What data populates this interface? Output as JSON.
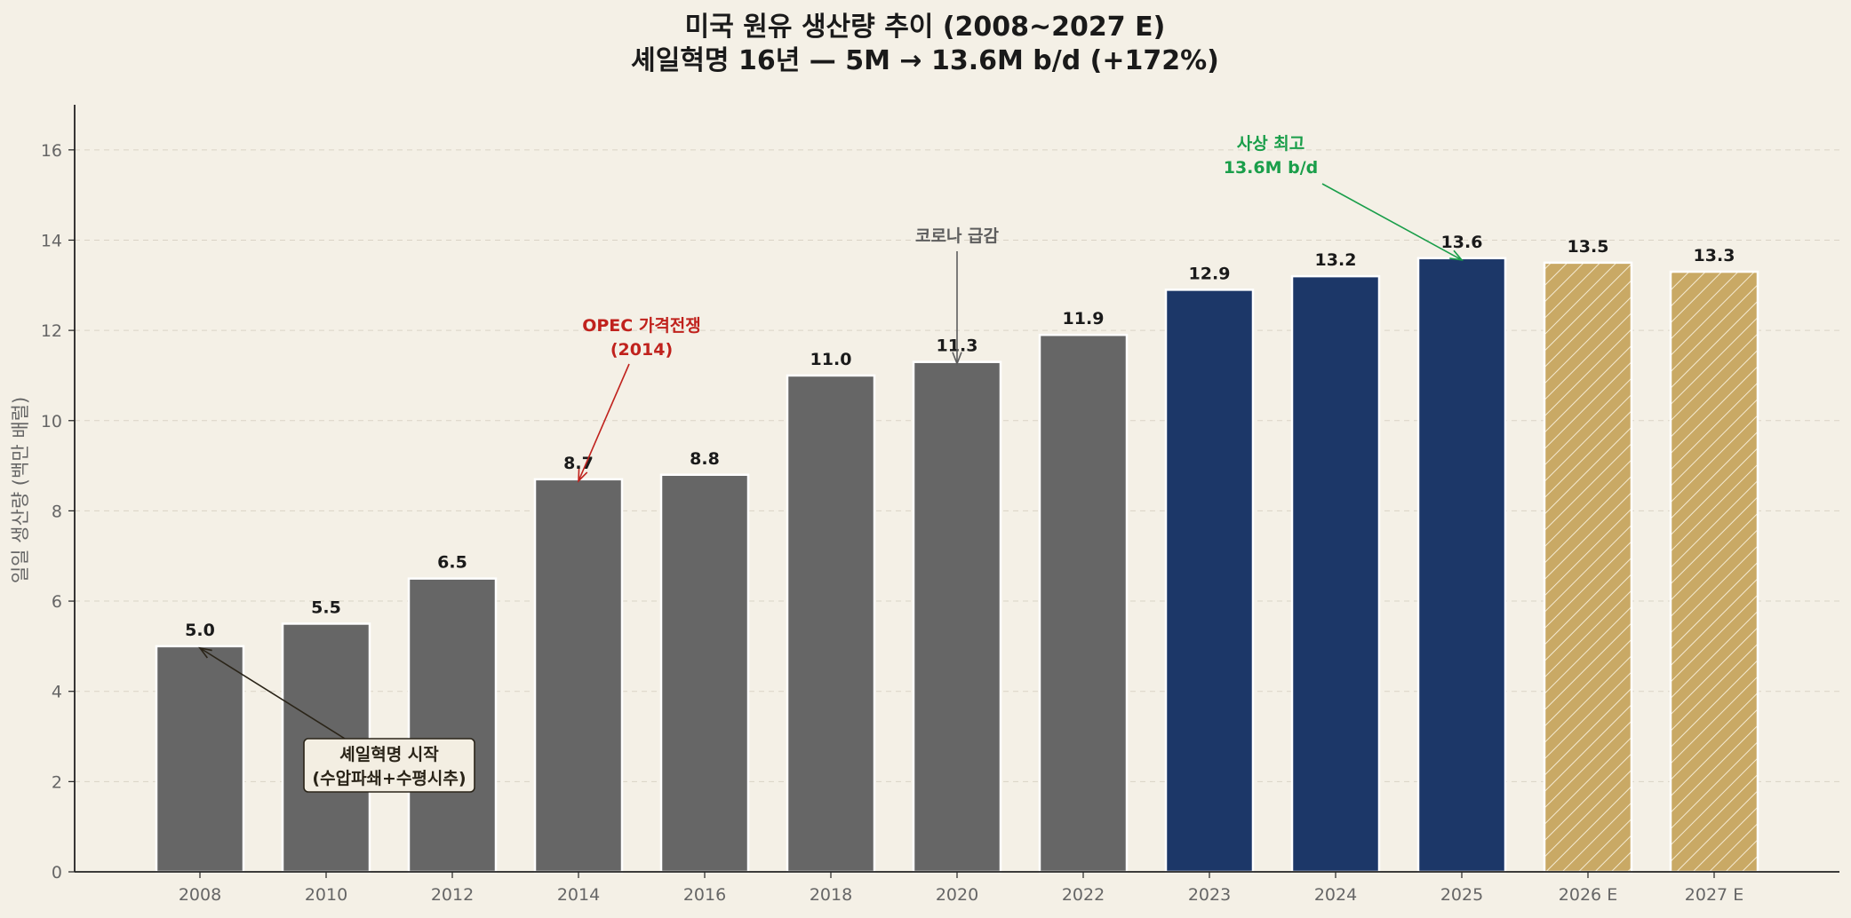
{
  "chart_data": {
    "type": "bar",
    "title": "미국 원유 생산량 추이 (2008~2027 E)",
    "subtitle": "셰일혁명 16년 — 5M → 13.6M b/d (+172%)",
    "xlabel": "",
    "ylabel": "일일 생산량 (백만 배럴)",
    "ylim": [
      0,
      17
    ],
    "yticks": [
      0,
      2,
      4,
      6,
      8,
      10,
      12,
      14,
      16
    ],
    "grid": true,
    "categories": [
      "2008",
      "2010",
      "2012",
      "2014",
      "2016",
      "2018",
      "2020",
      "2022",
      "2023",
      "2024",
      "2025",
      "2026 E",
      "2027 E"
    ],
    "values": [
      5.0,
      5.5,
      6.5,
      8.7,
      8.8,
      11.0,
      11.3,
      11.9,
      12.9,
      13.2,
      13.6,
      13.5,
      13.3
    ],
    "value_labels": [
      "5.0",
      "5.5",
      "6.5",
      "8.7",
      "8.8",
      "11.0",
      "11.3",
      "11.9",
      "12.9",
      "13.2",
      "13.6",
      "13.5",
      "13.3"
    ],
    "bar_styles": [
      "historical",
      "historical",
      "historical",
      "historical",
      "historical",
      "historical",
      "historical",
      "historical",
      "recent",
      "recent",
      "recent",
      "estimate",
      "estimate"
    ],
    "colors": {
      "historical": "#666666",
      "recent": "#1c3768",
      "estimate": "#c9a965",
      "background": "#f4f0e6",
      "axis": "#222222"
    },
    "annotations": [
      {
        "lines": [
          "셰일혁명 시작",
          "(수압파쇄+수평시추)"
        ],
        "target_category": "2008",
        "target_value": 5.0,
        "color": "#2a2418",
        "boxed": true
      },
      {
        "lines": [
          "OPEC 가격전쟁",
          "(2014)"
        ],
        "target_category": "2014",
        "target_value": 8.7,
        "color": "#c0221d",
        "boxed": false
      },
      {
        "lines": [
          "코로나 급감"
        ],
        "target_category": "2020",
        "target_value": 11.3,
        "color": "#5e5e5e",
        "boxed": false
      },
      {
        "lines": [
          "사상 최고",
          "13.6M b/d"
        ],
        "target_category": "2025",
        "target_value": 13.6,
        "color": "#1a9e4a",
        "boxed": false
      }
    ]
  }
}
